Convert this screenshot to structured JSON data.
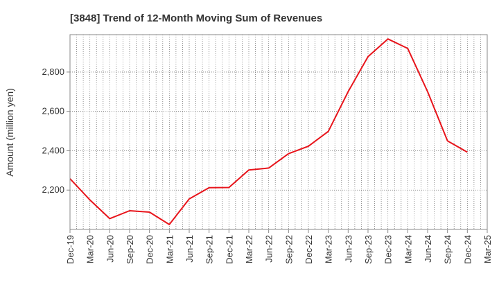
{
  "chart_data": {
    "type": "line",
    "title": "[3848]  Trend of 12-Month Moving Sum of Revenues",
    "xlabel": "",
    "ylabel": "Amount (million yen)",
    "categories": [
      "Dec-19",
      "Mar-20",
      "Jun-20",
      "Sep-20",
      "Dec-20",
      "Mar-21",
      "Jun-21",
      "Sep-21",
      "Dec-21",
      "Mar-22",
      "Jun-22",
      "Sep-22",
      "Dec-22",
      "Mar-23",
      "Jun-23",
      "Sep-23",
      "Dec-23",
      "Mar-24",
      "Jun-24",
      "Sep-24",
      "Dec-24",
      "Mar-25"
    ],
    "ylim": [
      2000,
      2990
    ],
    "yticks": [
      2200,
      2400,
      2600,
      2800
    ],
    "ytick_labels": [
      "2,200",
      "2,400",
      "2,600",
      "2,800"
    ],
    "grid": true,
    "series": [
      {
        "color": "#e8141b",
        "values": [
          2258,
          2150,
          2055,
          2095,
          2088,
          2025,
          2155,
          2212,
          2213,
          2302,
          2312,
          2385,
          2423,
          2498,
          2700,
          2878,
          2968,
          2920,
          2700,
          2450,
          2393,
          null
        ]
      }
    ]
  }
}
